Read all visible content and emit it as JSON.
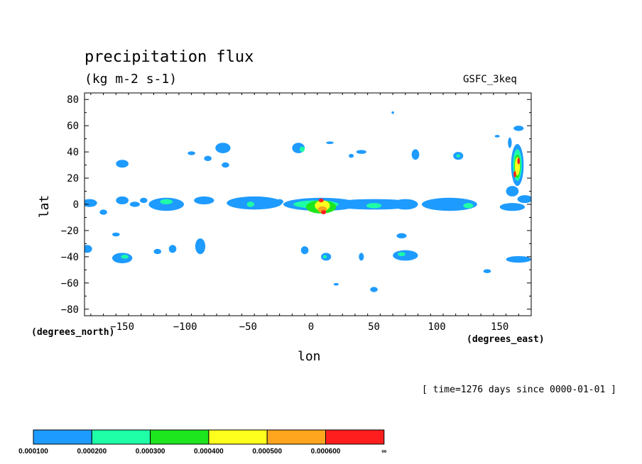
{
  "chart_data": {
    "type": "heatmap",
    "title": "precipitation flux",
    "units": "(kg m-2 s-1)",
    "run_label": "GSFC_3keq",
    "xlabel": "lon",
    "ylabel": "lat",
    "x_units": "(degrees_east)",
    "y_units": "(degrees_north)",
    "xlim": [
      -180,
      175
    ],
    "ylim": [
      -85,
      85
    ],
    "x_ticks": [
      -150,
      -100,
      -50,
      0,
      50,
      100,
      150
    ],
    "x_tick_labels": [
      "−150",
      "−100",
      "−50",
      "0",
      "50",
      "100",
      "150"
    ],
    "y_ticks": [
      80,
      60,
      40,
      20,
      0,
      -20,
      -40,
      -60,
      -80
    ],
    "y_tick_labels": [
      "80",
      "60",
      "40",
      "20",
      "0",
      "−20",
      "−40",
      "−60",
      "−80"
    ],
    "timestamp": "[ time=1276 days since 0000-01-01 ]",
    "colorbar": {
      "colors": [
        "#1e9bff",
        "#1effa8",
        "#1ee61e",
        "#ffff1e",
        "#ffa51e",
        "#ff1e1e"
      ],
      "tick_labels": [
        "0.000100",
        "0.000200",
        "0.000300",
        "0.000400",
        "0.000500",
        "0.000600",
        "∞"
      ]
    },
    "regions": [
      {
        "lon": -176,
        "lat": 1,
        "rx": 6,
        "ry": 3,
        "level": 1
      },
      {
        "lon": -165,
        "lat": -6,
        "rx": 3,
        "ry": 2,
        "level": 1
      },
      {
        "lon": -150,
        "lat": 3,
        "rx": 5,
        "ry": 3,
        "level": 1
      },
      {
        "lon": -140,
        "lat": 0,
        "rx": 4,
        "ry": 2,
        "level": 1
      },
      {
        "lon": -133,
        "lat": 3,
        "rx": 3,
        "ry": 2,
        "level": 1
      },
      {
        "lon": -115,
        "lat": 0,
        "rx": 14,
        "ry": 5,
        "level": 1
      },
      {
        "lon": -115,
        "lat": 2,
        "rx": 5,
        "ry": 2,
        "level": 2
      },
      {
        "lon": -85,
        "lat": 3,
        "rx": 8,
        "ry": 3,
        "level": 1
      },
      {
        "lon": -150,
        "lat": 31,
        "rx": 5,
        "ry": 3,
        "level": 1
      },
      {
        "lon": -95,
        "lat": 39,
        "rx": 3,
        "ry": 1.5,
        "level": 1
      },
      {
        "lon": -82,
        "lat": 35,
        "rx": 3,
        "ry": 2,
        "level": 1
      },
      {
        "lon": -70,
        "lat": 43,
        "rx": 6,
        "ry": 4,
        "level": 1
      },
      {
        "lon": -68,
        "lat": 30,
        "rx": 3,
        "ry": 2,
        "level": 1
      },
      {
        "lon": -178,
        "lat": -34,
        "rx": 4,
        "ry": 3,
        "level": 1
      },
      {
        "lon": -155,
        "lat": -23,
        "rx": 3,
        "ry": 1.5,
        "level": 1
      },
      {
        "lon": -150,
        "lat": -41,
        "rx": 8,
        "ry": 4,
        "level": 1
      },
      {
        "lon": -148,
        "lat": -40,
        "rx": 3,
        "ry": 1.5,
        "level": 2
      },
      {
        "lon": -122,
        "lat": -36,
        "rx": 3,
        "ry": 2,
        "level": 1
      },
      {
        "lon": -110,
        "lat": -34,
        "rx": 3,
        "ry": 3,
        "level": 1
      },
      {
        "lon": -88,
        "lat": -32,
        "rx": 4,
        "ry": 6,
        "level": 1
      },
      {
        "lon": -45,
        "lat": 1,
        "rx": 22,
        "ry": 5,
        "level": 1
      },
      {
        "lon": -48,
        "lat": 0,
        "rx": 3,
        "ry": 2,
        "level": 2
      },
      {
        "lon": -25,
        "lat": 2,
        "rx": 3,
        "ry": 2,
        "level": 1
      },
      {
        "lon": 8,
        "lat": 0,
        "rx": 30,
        "ry": 5,
        "level": 1
      },
      {
        "lon": 4,
        "lat": 0,
        "rx": 18,
        "ry": 3,
        "level": 2
      },
      {
        "lon": 8,
        "lat": -2,
        "rx": 12,
        "ry": 5,
        "level": 3
      },
      {
        "lon": 9,
        "lat": -1,
        "rx": 6,
        "ry": 4,
        "level": 4
      },
      {
        "lon": 9,
        "lat": -4,
        "rx": 3.5,
        "ry": 2.5,
        "level": 5
      },
      {
        "lon": 10,
        "lat": -6,
        "rx": 2,
        "ry": 1.6,
        "level": 6
      },
      {
        "lon": 8,
        "lat": 3,
        "rx": 2,
        "ry": 1.5,
        "level": 6
      },
      {
        "lon": 50,
        "lat": 0,
        "rx": 35,
        "ry": 4,
        "level": 1
      },
      {
        "lon": 50,
        "lat": -1,
        "rx": 6,
        "ry": 2,
        "level": 2
      },
      {
        "lon": 75,
        "lat": 0,
        "rx": 10,
        "ry": 4,
        "level": 1
      },
      {
        "lon": 110,
        "lat": 0,
        "rx": 22,
        "ry": 5,
        "level": 1
      },
      {
        "lon": 125,
        "lat": -1,
        "rx": 4,
        "ry": 2,
        "level": 2
      },
      {
        "lon": 160,
        "lat": -2,
        "rx": 10,
        "ry": 3,
        "level": 1
      },
      {
        "lon": 160,
        "lat": 10,
        "rx": 5,
        "ry": 4,
        "level": 1
      },
      {
        "lon": 170,
        "lat": 4,
        "rx": 6,
        "ry": 3,
        "level": 1
      },
      {
        "lon": -10,
        "lat": 43,
        "rx": 5,
        "ry": 4,
        "level": 1
      },
      {
        "lon": -7,
        "lat": 42,
        "rx": 2,
        "ry": 2,
        "level": 2
      },
      {
        "lon": 15,
        "lat": 47,
        "rx": 3,
        "ry": 1,
        "level": 1
      },
      {
        "lon": 40,
        "lat": 40,
        "rx": 4,
        "ry": 1.5,
        "level": 1
      },
      {
        "lon": 32,
        "lat": 37,
        "rx": 2,
        "ry": 1.5,
        "level": 1
      },
      {
        "lon": 65,
        "lat": 70,
        "rx": 1,
        "ry": 1,
        "level": 1
      },
      {
        "lon": 83,
        "lat": 38,
        "rx": 3,
        "ry": 4,
        "level": 1
      },
      {
        "lon": 117,
        "lat": 37,
        "rx": 4,
        "ry": 3,
        "level": 1
      },
      {
        "lon": 117,
        "lat": 37,
        "rx": 1.5,
        "ry": 1.2,
        "level": 2
      },
      {
        "lon": 148,
        "lat": 52,
        "rx": 2,
        "ry": 1,
        "level": 1
      },
      {
        "lon": 165,
        "lat": 58,
        "rx": 4,
        "ry": 2,
        "level": 1
      },
      {
        "lon": 164,
        "lat": 30,
        "rx": 5,
        "ry": 16,
        "level": 1
      },
      {
        "lon": 164,
        "lat": 30,
        "rx": 3.5,
        "ry": 12,
        "level": 2
      },
      {
        "lon": 164,
        "lat": 29,
        "rx": 2.5,
        "ry": 9,
        "level": 3
      },
      {
        "lon": 164,
        "lat": 29,
        "rx": 2,
        "ry": 7,
        "level": 4
      },
      {
        "lon": 165,
        "lat": 33,
        "rx": 1,
        "ry": 2.5,
        "level": 6
      },
      {
        "lon": 162,
        "lat": 23,
        "rx": 1,
        "ry": 2.5,
        "level": 6
      },
      {
        "lon": 158,
        "lat": 47,
        "rx": 1.5,
        "ry": 4,
        "level": 1
      },
      {
        "lon": -5,
        "lat": -35,
        "rx": 3,
        "ry": 3,
        "level": 1
      },
      {
        "lon": 12,
        "lat": -40,
        "rx": 4,
        "ry": 3,
        "level": 1
      },
      {
        "lon": 11,
        "lat": -40,
        "rx": 1.5,
        "ry": 1.2,
        "level": 2
      },
      {
        "lon": 40,
        "lat": -40,
        "rx": 2,
        "ry": 3,
        "level": 1
      },
      {
        "lon": 75,
        "lat": -39,
        "rx": 10,
        "ry": 4,
        "level": 1
      },
      {
        "lon": 72,
        "lat": -38,
        "rx": 3,
        "ry": 1.5,
        "level": 2
      },
      {
        "lon": 72,
        "lat": -24,
        "rx": 4,
        "ry": 2,
        "level": 1
      },
      {
        "lon": 140,
        "lat": -51,
        "rx": 3,
        "ry": 1.5,
        "level": 1
      },
      {
        "lon": 165,
        "lat": -42,
        "rx": 10,
        "ry": 2.5,
        "level": 1
      },
      {
        "lon": 50,
        "lat": -65,
        "rx": 3,
        "ry": 2,
        "level": 1
      },
      {
        "lon": 20,
        "lat": -61,
        "rx": 2,
        "ry": 1,
        "level": 1
      }
    ]
  }
}
